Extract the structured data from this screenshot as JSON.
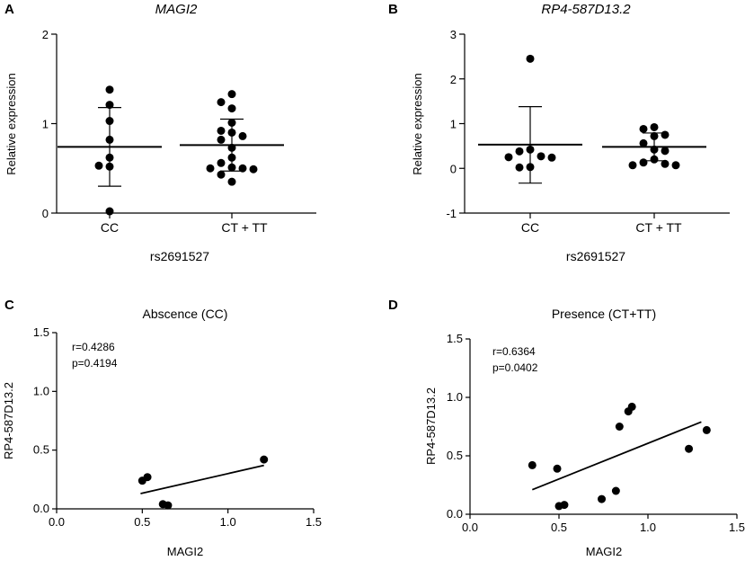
{
  "chart_data": [
    {
      "panel": "A",
      "type": "scatter",
      "title": "MAGI2",
      "ylabel": "Relative expression",
      "xlabel": "rs2691527",
      "ylim": [
        0,
        2
      ],
      "yticks": [
        "0",
        "1",
        "2"
      ],
      "categories": [
        "CC",
        "CT + TT"
      ],
      "groups": [
        {
          "name": "CC",
          "mean": 0.74,
          "sd_low": 0.3,
          "sd_high": 1.18,
          "points": [
            1.38,
            1.21,
            1.03,
            0.82,
            0.62,
            0.53,
            0.52,
            0.02
          ]
        },
        {
          "name": "CT + TT",
          "mean": 0.76,
          "sd_low": 0.47,
          "sd_high": 1.05,
          "points": [
            1.33,
            1.24,
            1.17,
            1.01,
            0.92,
            0.9,
            0.86,
            0.82,
            0.73,
            0.62,
            0.56,
            0.51,
            0.5,
            0.5,
            0.49,
            0.43,
            0.35
          ]
        }
      ]
    },
    {
      "panel": "B",
      "type": "scatter",
      "title": "RP4-587D13.2",
      "ylabel": "Relative expression",
      "xlabel": "rs2691527",
      "ylim": [
        -1,
        3
      ],
      "yticks": [
        "-1",
        "0",
        "1",
        "2",
        "3"
      ],
      "categories": [
        "CC",
        "CT + TT"
      ],
      "groups": [
        {
          "name": "CC",
          "mean": 0.53,
          "sd_low": -0.33,
          "sd_high": 1.38,
          "points": [
            2.45,
            0.42,
            0.38,
            0.27,
            0.25,
            0.24,
            0.03,
            0.02
          ]
        },
        {
          "name": "CT + TT",
          "mean": 0.48,
          "sd_low": 0.17,
          "sd_high": 0.79,
          "points": [
            0.92,
            0.88,
            0.75,
            0.72,
            0.56,
            0.42,
            0.39,
            0.2,
            0.13,
            0.1,
            0.07,
            0.07
          ]
        }
      ]
    },
    {
      "panel": "C",
      "type": "scatter",
      "title": "Abscence (CC)",
      "xlabel": "MAGI2",
      "ylabel": "RP4-587D13.2",
      "xlim": [
        0,
        1.5
      ],
      "ylim": [
        0,
        1.5
      ],
      "xticks": [
        "0.0",
        "0.5",
        "1.0",
        "1.5"
      ],
      "yticks": [
        "0.0",
        "0.5",
        "1.0",
        "1.5"
      ],
      "stats": {
        "r": "r=0.4286",
        "p": "p=0.4194"
      },
      "points": [
        {
          "x": 0.5,
          "y": 0.24
        },
        {
          "x": 0.53,
          "y": 0.27
        },
        {
          "x": 0.62,
          "y": 0.04
        },
        {
          "x": 0.65,
          "y": 0.03
        },
        {
          "x": 1.21,
          "y": 0.42
        }
      ],
      "fit": {
        "x": [
          0.49,
          1.21
        ],
        "y": [
          0.13,
          0.37
        ]
      }
    },
    {
      "panel": "D",
      "type": "scatter",
      "title": "Presence (CT+TT)",
      "xlabel": "MAGI2",
      "ylabel": "RP4-587D13.2",
      "xlim": [
        0,
        1.5
      ],
      "ylim": [
        0,
        1.5
      ],
      "xticks": [
        "0.0",
        "0.5",
        "1.0",
        "1.5"
      ],
      "yticks": [
        "0.0",
        "0.5",
        "1.0",
        "1.5"
      ],
      "stats": {
        "r": "r=0.6364",
        "p": "p=0.0402"
      },
      "points": [
        {
          "x": 0.35,
          "y": 0.42
        },
        {
          "x": 0.49,
          "y": 0.39
        },
        {
          "x": 0.5,
          "y": 0.07
        },
        {
          "x": 0.53,
          "y": 0.08
        },
        {
          "x": 0.74,
          "y": 0.13
        },
        {
          "x": 0.82,
          "y": 0.2
        },
        {
          "x": 0.84,
          "y": 0.75
        },
        {
          "x": 0.89,
          "y": 0.88
        },
        {
          "x": 0.91,
          "y": 0.92
        },
        {
          "x": 1.23,
          "y": 0.56
        },
        {
          "x": 1.33,
          "y": 0.72
        }
      ],
      "fit": {
        "x": [
          0.35,
          1.3
        ],
        "y": [
          0.21,
          0.79
        ]
      }
    }
  ]
}
